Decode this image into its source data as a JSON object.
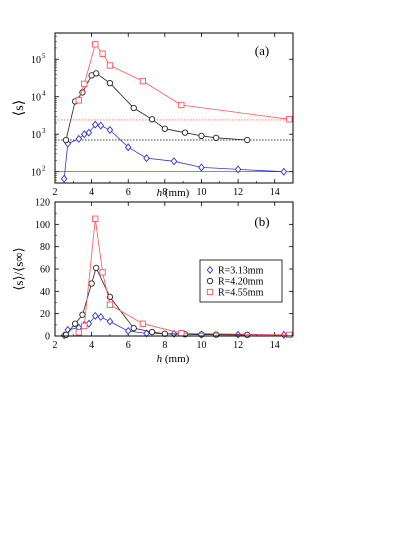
{
  "chart_data": [
    {
      "type": "line",
      "panel_label": "(a)",
      "xlabel": "h (mm)",
      "ylabel": "⟨s⟩",
      "xlim": [
        2,
        15
      ],
      "ylim": [
        50,
        500000
      ],
      "yscale": "log",
      "xticks": [
        2,
        4,
        6,
        8,
        10,
        12,
        14
      ],
      "yticks": [
        100,
        1000,
        10000,
        100000
      ],
      "ytick_labels": [
        "10",
        "10",
        "10",
        "10"
      ],
      "ytick_exponents": [
        "2",
        "3",
        "4",
        "5"
      ],
      "reference_lines": [
        {
          "value": 100,
          "color": "#3333ff",
          "style": "solid"
        },
        {
          "value": 700,
          "color": "#000000",
          "style": "dotted"
        },
        {
          "value": 2400,
          "color": "#ff6666",
          "style": "dotted"
        }
      ],
      "series": [
        {
          "marker": "diamond",
          "color": "#3333cc",
          "x": [
            2.5,
            2.7,
            3.3,
            3.6,
            3.85,
            4.2,
            4.5,
            5.0,
            6.0,
            7.0,
            8.5,
            10.0,
            12.0,
            14.5
          ],
          "y": [
            65,
            560,
            750,
            1000,
            1100,
            1800,
            1700,
            1300,
            450,
            230,
            190,
            130,
            115,
            100
          ]
        },
        {
          "marker": "circle",
          "color": "#222222",
          "x": [
            2.6,
            3.1,
            3.5,
            4.0,
            4.25,
            5.0,
            6.3,
            7.3,
            8.0,
            9.1,
            10.0,
            10.8,
            12.5
          ],
          "y": [
            700,
            7500,
            13000,
            37000,
            42000,
            23000,
            5000,
            2500,
            1400,
            1100,
            900,
            800,
            700
          ]
        },
        {
          "marker": "square",
          "color": "#ff5555",
          "x": [
            3.3,
            3.6,
            4.2,
            4.6,
            5.0,
            6.8,
            8.9,
            14.8
          ],
          "y": [
            8000,
            22000,
            250000,
            140000,
            68000,
            26000,
            6000,
            2500
          ]
        }
      ]
    },
    {
      "type": "line",
      "panel_label": "(b)",
      "xlabel": "h (mm)",
      "ylabel": "⟨s⟩/⟨s∞⟩",
      "xlim": [
        2,
        15
      ],
      "ylim": [
        0,
        120
      ],
      "xticks": [
        2,
        4,
        6,
        8,
        10,
        12,
        14
      ],
      "yticks": [
        0,
        20,
        40,
        60,
        80,
        100,
        120
      ],
      "legend_position": "right",
      "series": [
        {
          "name": "R=3.13mm",
          "marker": "diamond",
          "color": "#3333cc",
          "x": [
            2.5,
            2.7,
            3.3,
            3.6,
            3.85,
            4.2,
            4.5,
            5.0,
            6.0,
            7.0,
            8.5,
            10.0,
            12.0,
            14.5
          ],
          "y": [
            0.6,
            5.5,
            7.5,
            10,
            11,
            18,
            17,
            13,
            4.5,
            2.3,
            1.9,
            1.3,
            1.2,
            1.0
          ]
        },
        {
          "name": "R=4.20mm",
          "marker": "circle",
          "color": "#222222",
          "x": [
            2.6,
            3.1,
            3.5,
            4.0,
            4.25,
            5.0,
            6.3,
            7.3,
            8.0,
            9.1,
            10.0,
            10.8,
            12.5
          ],
          "y": [
            1,
            11,
            19,
            47,
            61,
            35,
            7,
            3.6,
            2,
            1.6,
            1.3,
            1.2,
            1.0
          ]
        },
        {
          "name": "R=4.55mm",
          "marker": "square",
          "color": "#ff5555",
          "x": [
            3.3,
            3.6,
            4.2,
            4.6,
            5.0,
            6.8,
            8.9,
            14.8
          ],
          "y": [
            3.3,
            9,
            105,
            57,
            28,
            11,
            2.5,
            1.0
          ]
        }
      ]
    }
  ]
}
